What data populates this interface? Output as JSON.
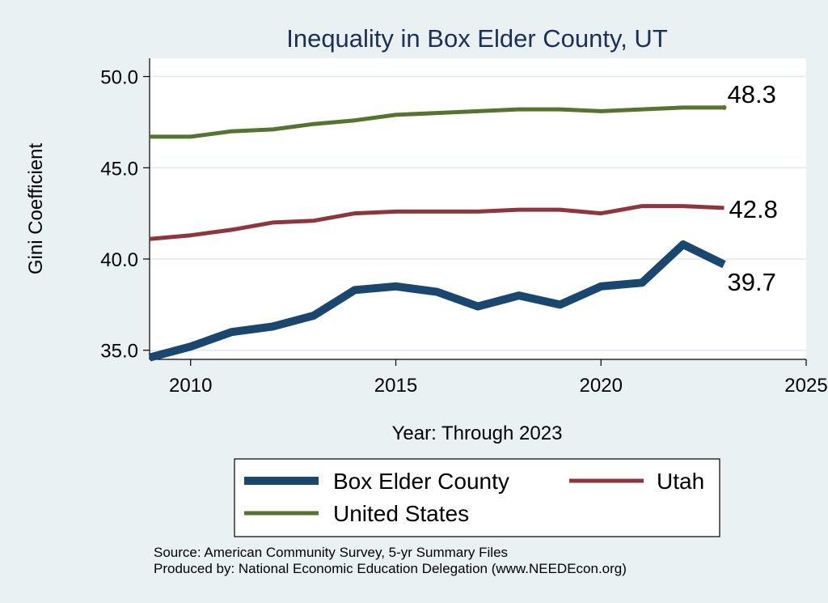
{
  "chart_data": {
    "type": "line",
    "title": "Inequality in Box Elder County, UT",
    "xlabel": "Year: Through 2023",
    "ylabel": "Gini Coefficient",
    "xlim": [
      2009,
      2025
    ],
    "ylim": [
      34.5,
      51.0
    ],
    "xticks": [
      2010,
      2015,
      2020,
      2025
    ],
    "yticks": [
      35.0,
      40.0,
      45.0,
      50.0
    ],
    "xtick_labels": [
      "2010",
      "2015",
      "2020",
      "2025"
    ],
    "ytick_labels": [
      "35.0",
      "40.0",
      "45.0",
      "50.0"
    ],
    "grid": true,
    "series": [
      {
        "name": "Box Elder County",
        "color": "#1a476f",
        "x": [
          2009,
          2010,
          2011,
          2012,
          2013,
          2014,
          2015,
          2016,
          2017,
          2018,
          2019,
          2020,
          2021,
          2022,
          2023
        ],
        "values": [
          34.6,
          35.2,
          36.0,
          36.3,
          36.9,
          38.3,
          38.5,
          38.2,
          37.4,
          38.0,
          37.5,
          38.5,
          38.7,
          40.8,
          39.7
        ],
        "end_label": "39.7"
      },
      {
        "name": "Utah",
        "color": "#90353b",
        "x": [
          2009,
          2010,
          2011,
          2012,
          2013,
          2014,
          2015,
          2016,
          2017,
          2018,
          2019,
          2020,
          2021,
          2022,
          2023
        ],
        "values": [
          41.1,
          41.3,
          41.6,
          42.0,
          42.1,
          42.5,
          42.6,
          42.6,
          42.6,
          42.7,
          42.7,
          42.5,
          42.9,
          42.9,
          42.8
        ],
        "end_label": "42.8"
      },
      {
        "name": "United States",
        "color": "#55752f",
        "x": [
          2009,
          2010,
          2011,
          2012,
          2013,
          2014,
          2015,
          2016,
          2017,
          2018,
          2019,
          2020,
          2021,
          2022,
          2023
        ],
        "values": [
          46.7,
          46.7,
          47.0,
          47.1,
          47.4,
          47.6,
          47.9,
          48.0,
          48.1,
          48.2,
          48.2,
          48.1,
          48.2,
          48.3,
          48.3
        ],
        "end_label": "48.3"
      }
    ],
    "legend": {
      "position": "bottom",
      "entries": [
        "Box Elder County",
        "Utah",
        "United States"
      ]
    },
    "notes": [
      "Source: American Community Survey, 5-yr Summary Files",
      "Produced by: National Economic Education Delegation (www.NEEDEcon.org)"
    ]
  }
}
